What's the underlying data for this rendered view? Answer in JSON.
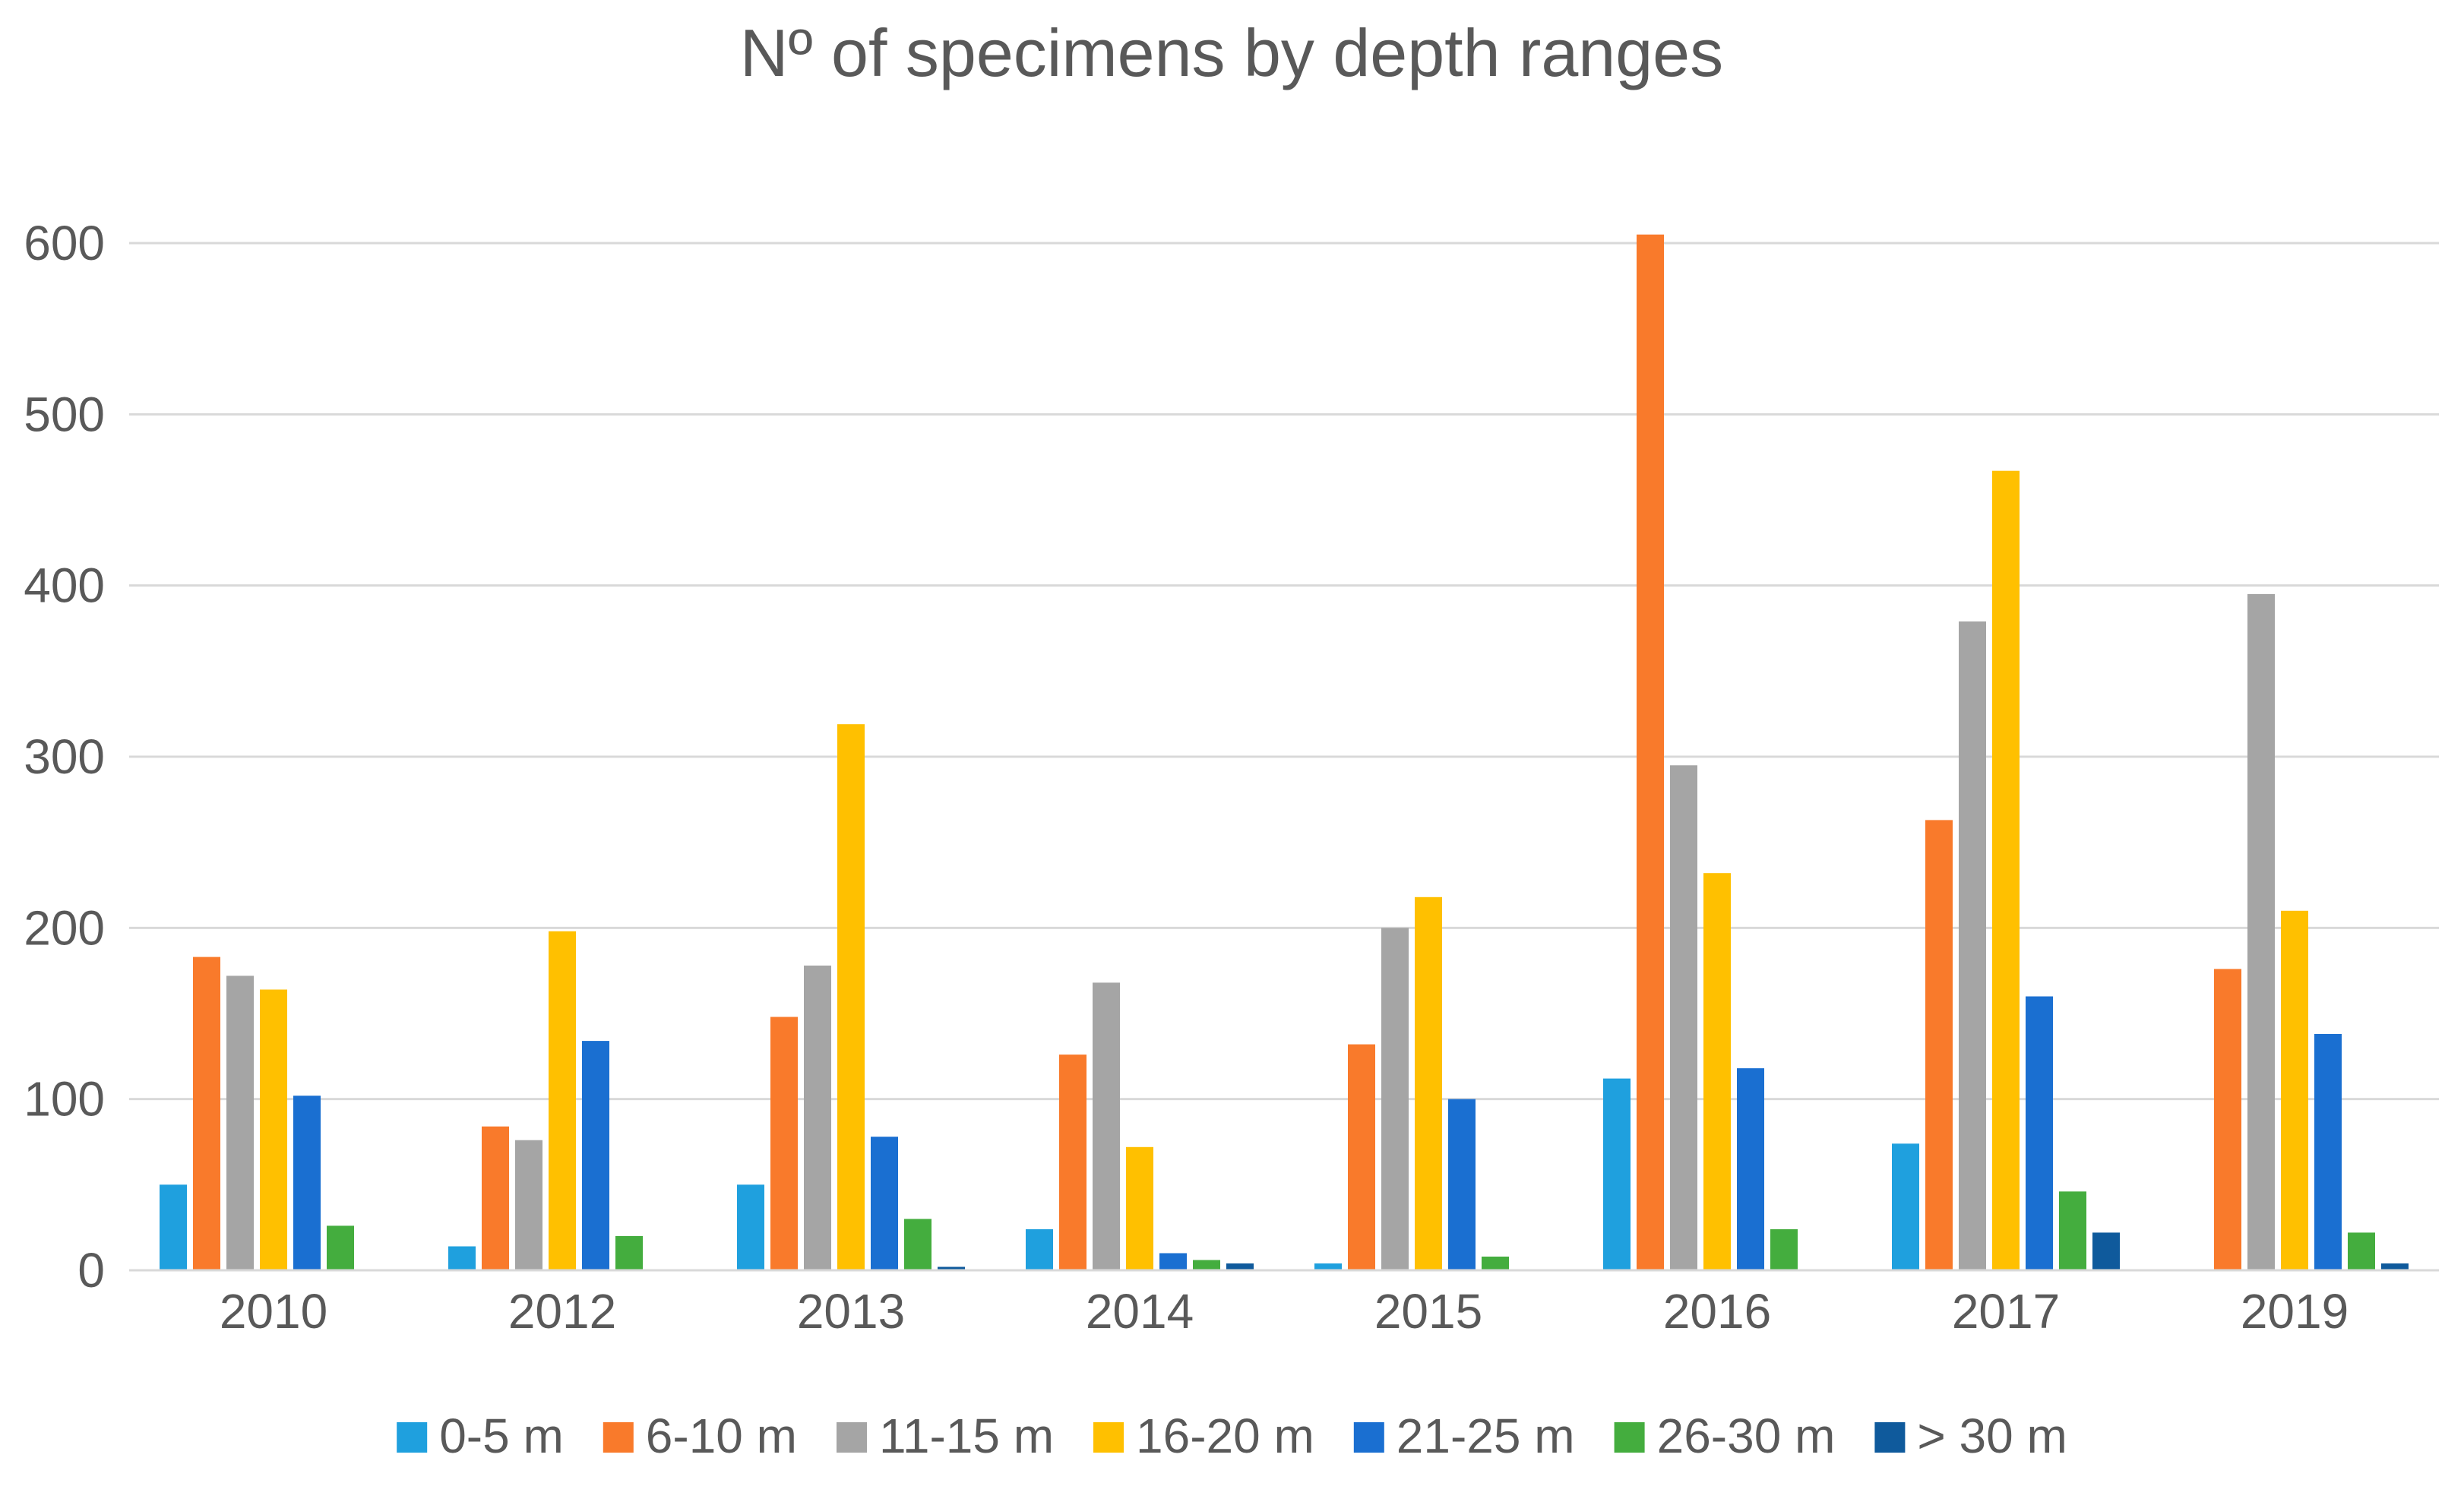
{
  "chart_data": {
    "type": "bar",
    "title": "Nº of specimens by depth ranges",
    "xlabel": "",
    "ylabel": "",
    "ylim": [
      0,
      600
    ],
    "yticks": [
      0,
      100,
      200,
      300,
      400,
      500,
      600
    ],
    "grid": true,
    "legend_position": "bottom",
    "categories": [
      "2010",
      "2012",
      "2013",
      "2014",
      "2015",
      "2016",
      "2017",
      "2019"
    ],
    "series": [
      {
        "name": "0-5 m",
        "color": "#1fa0de",
        "values": [
          50,
          14,
          50,
          24,
          4,
          112,
          74,
          0
        ]
      },
      {
        "name": "6-10 m",
        "color": "#f97a2b",
        "values": [
          183,
          84,
          148,
          126,
          132,
          605,
          263,
          176
        ]
      },
      {
        "name": "11-15 m",
        "color": "#a5a5a5",
        "values": [
          172,
          76,
          178,
          168,
          200,
          295,
          379,
          395
        ]
      },
      {
        "name": "16-20 m",
        "color": "#ffc000",
        "values": [
          164,
          198,
          319,
          72,
          218,
          232,
          467,
          210
        ]
      },
      {
        "name": "21-25 m",
        "color": "#1a6fd1",
        "values": [
          102,
          134,
          78,
          10,
          100,
          118,
          160,
          138
        ]
      },
      {
        "name": "26-30 m",
        "color": "#44ad3e",
        "values": [
          26,
          20,
          30,
          6,
          8,
          24,
          46,
          22
        ]
      },
      {
        "name": "> 30 m",
        "color": "#0f5a9c",
        "values": [
          0,
          0,
          2,
          4,
          0,
          0,
          22,
          4
        ]
      }
    ]
  }
}
